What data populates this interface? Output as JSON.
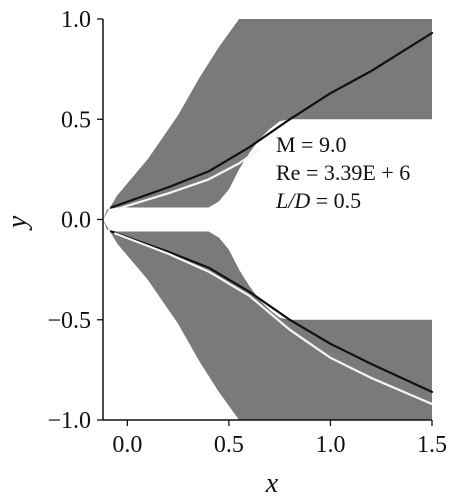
{
  "chart_data": {
    "type": "heatmap",
    "title": "",
    "xlabel": "x",
    "ylabel": "y",
    "xlim": [
      -0.12,
      1.5
    ],
    "ylim": [
      -1.0,
      1.0
    ],
    "xticks": [
      0.0,
      0.5,
      1.0,
      1.5
    ],
    "yticks": [
      -1.0,
      -0.5,
      0.0,
      0.5,
      1.0
    ],
    "xtick_labels": [
      "0.0",
      "0.5",
      "1.0",
      "1.5"
    ],
    "ytick_labels": [
      "−1.0",
      "−0.5",
      "0.0",
      "0.5",
      "1.0"
    ],
    "annotations": {
      "mach": "M = 9.0",
      "reynolds": "Re = 3.39E + 6",
      "ld_var": "L/D",
      "ld_value": " = 0.5"
    },
    "field_color": "#7a7a7a",
    "grid": false,
    "body": {
      "upper_body": [
        [
          -0.12,
          0.0
        ],
        [
          -0.1,
          0.05
        ],
        [
          -0.05,
          0.06
        ],
        [
          0.4,
          0.06
        ],
        [
          0.45,
          0.09
        ],
        [
          0.5,
          0.15
        ],
        [
          0.55,
          0.25
        ],
        [
          0.6,
          0.33
        ],
        [
          0.65,
          0.4
        ],
        [
          0.7,
          0.45
        ],
        [
          0.75,
          0.49
        ],
        [
          0.8,
          0.5
        ],
        [
          1.5,
          0.5
        ]
      ],
      "lower_body": [
        [
          -0.12,
          0.0
        ],
        [
          -0.1,
          -0.05
        ],
        [
          -0.05,
          -0.06
        ],
        [
          0.4,
          -0.06
        ],
        [
          0.45,
          -0.09
        ],
        [
          0.5,
          -0.15
        ],
        [
          0.55,
          -0.25
        ],
        [
          0.6,
          -0.33
        ],
        [
          0.65,
          -0.4
        ],
        [
          0.7,
          -0.45
        ],
        [
          0.75,
          -0.49
        ],
        [
          0.8,
          -0.5
        ],
        [
          1.5,
          -0.5
        ]
      ],
      "upper_outer": [
        [
          -0.12,
          0.0
        ],
        [
          -0.05,
          0.12
        ],
        [
          0.1,
          0.3
        ],
        [
          0.25,
          0.52
        ],
        [
          0.35,
          0.7
        ],
        [
          0.45,
          0.86
        ],
        [
          0.55,
          1.0
        ],
        [
          1.5,
          1.0
        ]
      ],
      "lower_outer": [
        [
          -0.12,
          0.0
        ],
        [
          -0.05,
          -0.12
        ],
        [
          0.1,
          -0.3
        ],
        [
          0.25,
          -0.52
        ],
        [
          0.35,
          -0.7
        ],
        [
          0.45,
          -0.86
        ],
        [
          0.55,
          -1.0
        ],
        [
          1.5,
          -1.0
        ]
      ]
    },
    "shock_lines": [
      {
        "color": "#111111",
        "points": [
          [
            -0.08,
            0.06
          ],
          [
            0.2,
            0.16
          ],
          [
            0.4,
            0.24
          ],
          [
            0.6,
            0.36
          ],
          [
            0.8,
            0.5
          ],
          [
            1.0,
            0.63
          ],
          [
            1.2,
            0.74
          ],
          [
            1.5,
            0.93
          ]
        ]
      },
      {
        "color": "#f5f5f5",
        "points": [
          [
            -0.06,
            0.05
          ],
          [
            0.2,
            0.13
          ],
          [
            0.4,
            0.2
          ],
          [
            0.55,
            0.28
          ],
          [
            0.65,
            0.35
          ]
        ]
      },
      {
        "color": "#111111",
        "points": [
          [
            -0.08,
            -0.06
          ],
          [
            0.2,
            -0.16
          ],
          [
            0.4,
            -0.24
          ],
          [
            0.6,
            -0.36
          ],
          [
            0.8,
            -0.5
          ],
          [
            1.0,
            -0.62
          ],
          [
            1.2,
            -0.72
          ],
          [
            1.5,
            -0.86
          ]
        ]
      },
      {
        "color": "#f5f5f5",
        "points": [
          [
            -0.06,
            -0.07
          ],
          [
            0.2,
            -0.17
          ],
          [
            0.4,
            -0.26
          ],
          [
            0.6,
            -0.38
          ],
          [
            0.8,
            -0.55
          ],
          [
            1.0,
            -0.69
          ],
          [
            1.2,
            -0.79
          ],
          [
            1.5,
            -0.92
          ]
        ]
      }
    ]
  }
}
